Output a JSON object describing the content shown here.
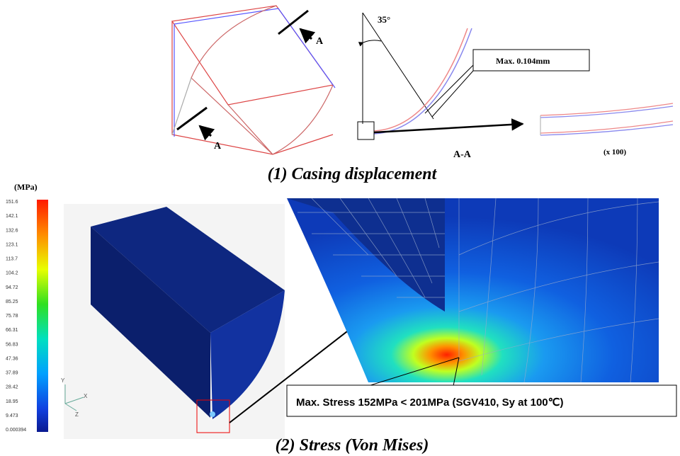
{
  "top": {
    "angle": "35°",
    "section_mark_upper": "A",
    "section_mark_lower": "A",
    "max_label": "Max. 0.104mm",
    "section_label": "A-A",
    "scale_label": "(x 100)",
    "caption": "(1) Casing displacement"
  },
  "legend": {
    "unit": "(MPa)",
    "labels": [
      "151.6",
      "142.1",
      "132.6",
      "123.1",
      "113.7",
      "104.2",
      "94.72",
      "85.25",
      "75.78",
      "66.31",
      "56.83",
      "47.36",
      "37.89",
      "28.42",
      "18.95",
      "9.473",
      "0.000394"
    ]
  },
  "axes": {
    "y": "Y",
    "x": "X",
    "z": "Z"
  },
  "bottom": {
    "callout": "Max. Stress 152MPa < 201MPa (SGV410, Sy at 100℃)",
    "caption": "(2) Stress (Von Mises)"
  }
}
